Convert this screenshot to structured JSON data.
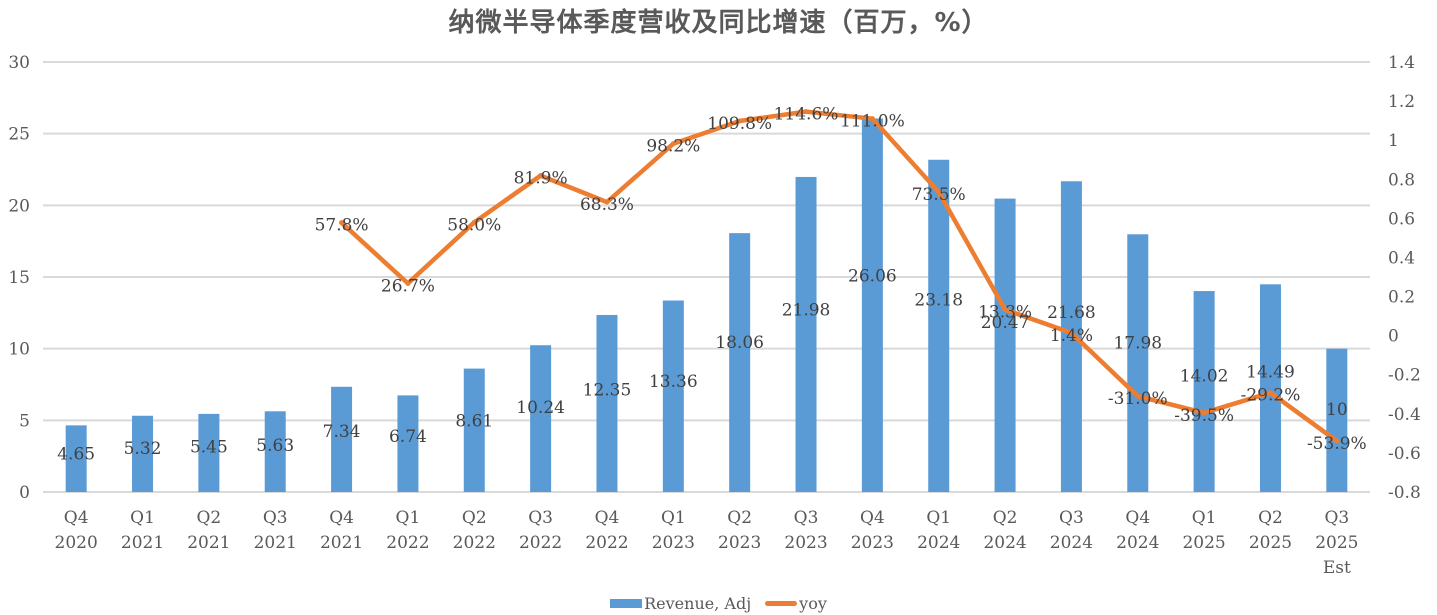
{
  "chart_data": {
    "type": "bar",
    "title": "纳微半导体季度营收及同比增速（百万，%）",
    "categories": [
      [
        "Q4",
        "2020"
      ],
      [
        "Q1",
        "2021"
      ],
      [
        "Q2",
        "2021"
      ],
      [
        "Q3",
        "2021"
      ],
      [
        "Q4",
        "2021"
      ],
      [
        "Q1",
        "2022"
      ],
      [
        "Q2",
        "2022"
      ],
      [
        "Q3",
        "2022"
      ],
      [
        "Q4",
        "2022"
      ],
      [
        "Q1",
        "2023"
      ],
      [
        "Q2",
        "2023"
      ],
      [
        "Q3",
        "2023"
      ],
      [
        "Q4",
        "2023"
      ],
      [
        "Q1",
        "2024"
      ],
      [
        "Q2",
        "2024"
      ],
      [
        "Q3",
        "2024"
      ],
      [
        "Q4",
        "2024"
      ],
      [
        "Q1",
        "2025"
      ],
      [
        "Q2",
        "2025"
      ],
      [
        "Q3",
        "2025",
        "Est"
      ]
    ],
    "series": [
      {
        "name": "Revenue, Adj",
        "type": "bar",
        "axis": "left",
        "color": "#5b9bd5",
        "values": [
          4.65,
          5.32,
          5.45,
          5.63,
          7.34,
          6.74,
          8.61,
          10.24,
          12.35,
          13.36,
          18.06,
          21.98,
          26.06,
          23.18,
          20.47,
          21.68,
          17.98,
          14.02,
          14.49,
          10
        ],
        "labels": [
          "4.65",
          "5.32",
          "5.45",
          "5.63",
          "7.34",
          "6.74",
          "8.61",
          "10.24",
          "12.35",
          "13.36",
          "18.06",
          "21.98",
          "26.06",
          "23.18",
          "20.47",
          "21.68",
          "17.98",
          "14.02",
          "14.49",
          "10"
        ]
      },
      {
        "name": "yoy",
        "type": "line",
        "axis": "right",
        "color": "#ed7d31",
        "values": [
          null,
          null,
          null,
          null,
          0.578,
          0.267,
          0.58,
          0.819,
          0.683,
          0.982,
          1.098,
          1.146,
          1.11,
          0.735,
          0.133,
          0.014,
          -0.31,
          -0.395,
          -0.292,
          -0.539
        ],
        "labels": [
          null,
          null,
          null,
          null,
          "57.8%",
          "26.7%",
          "58.0%",
          "81.9%",
          "68.3%",
          "98.2%",
          "109.8%",
          "114.6%",
          "111.0%",
          "73.5%",
          "13.3%",
          "1.4%",
          "-31.0%",
          "-39.5%",
          "-29.2%",
          "-53.9%"
        ]
      }
    ],
    "y_left": {
      "min": 0,
      "max": 30,
      "step": 5,
      "ticks": [
        "0",
        "5",
        "10",
        "15",
        "20",
        "25",
        "30"
      ]
    },
    "y_right": {
      "min": -0.8,
      "max": 1.4,
      "step": 0.2,
      "ticks": [
        "-0.8",
        "-0.6",
        "-0.4",
        "-0.2",
        "0",
        "0.2",
        "0.4",
        "0.6",
        "0.8",
        "1",
        "1.2",
        "1.4"
      ]
    },
    "grid": true,
    "legend": {
      "placement": "bottom",
      "items": [
        "Revenue, Adj",
        "yoy"
      ]
    }
  }
}
